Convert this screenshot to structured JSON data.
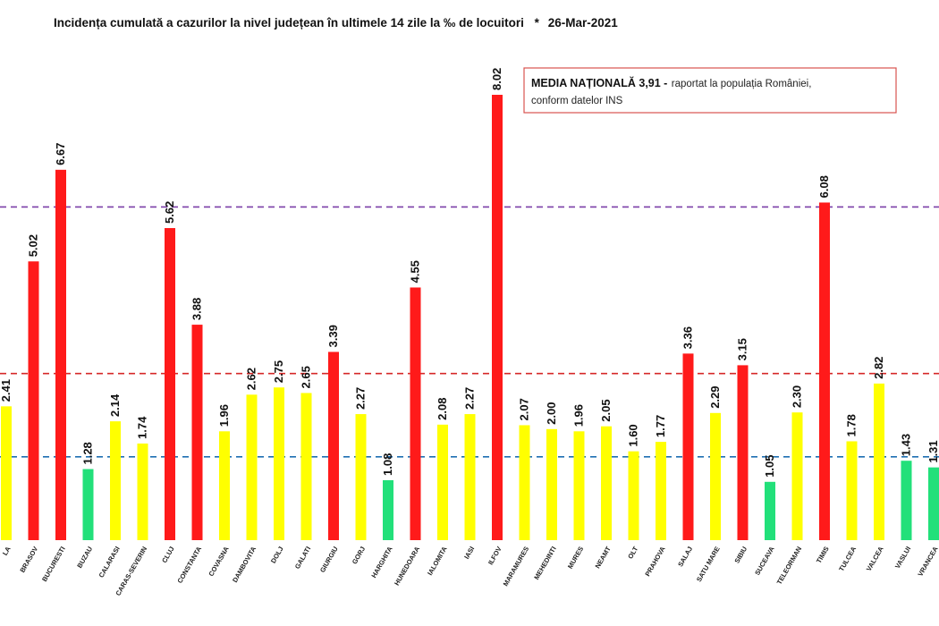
{
  "chart_data": {
    "type": "bar",
    "title": "Incidența cumulată a cazurilor la nivel județean în ultimele 14 zile   la ‰ de locuitori",
    "title_marker": "*",
    "date": "26-Mar-2021",
    "xlabel": "",
    "ylabel": "",
    "ylim": [
      0,
      8.6
    ],
    "grid": false,
    "annotation": {
      "main": "MEDIA NAȚIONALĂ 3,91 -",
      "rest": " raportat la populația României,",
      "line2": "conform datelor INS",
      "border_color": "#d9534f"
    },
    "reference_lines": [
      {
        "value": 6.0,
        "color": "#7b3fa8"
      },
      {
        "value": 3.0,
        "color": "#d62828"
      },
      {
        "value": 1.5,
        "color": "#1f6fb2"
      }
    ],
    "colors": {
      "red": "#ff1a1a",
      "yellow": "#ffff00",
      "green": "#22e07a"
    },
    "categories": [
      "LA",
      "BRASOV",
      "BUCURESTI",
      "BUZAU",
      "CALARASI",
      "CARAS-SEVERIN",
      "CLUJ",
      "CONSTANTA",
      "COVASNA",
      "DAMBOVITA",
      "DOLJ",
      "GALATI",
      "GIURGIU",
      "GORJ",
      "HARGHITA",
      "HUNEDOARA",
      "IALOMITA",
      "IASI",
      "ILFOV",
      "MARAMURES",
      "MEHEDINTI",
      "MURES",
      "NEAMT",
      "OLT",
      "PRAHOVA",
      "SALAJ",
      "SATU MARE",
      "SIBIU",
      "SUCEAVA",
      "TELEORMAN",
      "TIMIS",
      "TULCEA",
      "VALCEA",
      "VASLUI",
      "VRANCEA"
    ],
    "values": [
      2.41,
      5.02,
      6.67,
      1.28,
      2.14,
      1.74,
      5.62,
      3.88,
      1.96,
      2.62,
      2.75,
      2.65,
      3.39,
      2.27,
      1.08,
      4.55,
      2.08,
      2.27,
      8.02,
      2.07,
      2.0,
      1.96,
      2.05,
      1.6,
      1.77,
      3.36,
      2.29,
      3.15,
      1.05,
      2.3,
      6.08,
      1.78,
      2.82,
      1.43,
      1.31
    ],
    "value_labels": [
      "2.41",
      "5.02",
      "6.67",
      "1.28",
      "2.14",
      "1.74",
      "5.62",
      "3.88",
      "1.96",
      "2.62",
      "2.75",
      "2.65",
      "3.39",
      "2.27",
      "1.08",
      "4.55",
      "2.08",
      "2.27",
      "8.02",
      "2.07",
      "2.00",
      "1.96",
      "2.05",
      "1.60",
      "1.77",
      "3.36",
      "2.29",
      "3.15",
      "1.05",
      "2.30",
      "6.08",
      "1.78",
      "2.82",
      "1.43",
      "1.31"
    ]
  }
}
